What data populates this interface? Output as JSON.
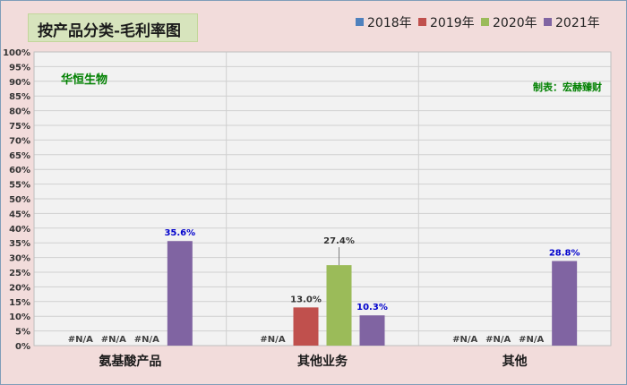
{
  "title": "按产品分类-毛利率图",
  "company_label": "华恒生物",
  "source_label": "制表：宏赫臻财",
  "colors": {
    "background": "#f2dcdb",
    "plot_bg": "#f2f2f2",
    "title_bg": "#d7e4bd",
    "company_text": "#008000",
    "highlight_label": "#0000cc"
  },
  "chart_data": {
    "type": "bar",
    "title": "按产品分类-毛利率图",
    "categories": [
      "氨基酸产品",
      "其他业务",
      "其他"
    ],
    "series": [
      {
        "name": "2018年",
        "color": "#4f81bd",
        "values": [
          null,
          null,
          null
        ],
        "labels": [
          "#N/A",
          "#N/A",
          "#N/A"
        ]
      },
      {
        "name": "2019年",
        "color": "#c0504d",
        "values": [
          null,
          13.0,
          null
        ],
        "labels": [
          "#N/A",
          "13.0%",
          "#N/A"
        ]
      },
      {
        "name": "2020年",
        "color": "#9bbb59",
        "values": [
          null,
          27.4,
          null
        ],
        "labels": [
          "#N/A",
          "27.4%",
          "#N/A"
        ]
      },
      {
        "name": "2021年",
        "color": "#8064a2",
        "values": [
          35.6,
          10.3,
          28.8
        ],
        "labels": [
          "35.6%",
          "10.3%",
          "28.8%"
        ]
      }
    ],
    "y_ticks": [
      "0%",
      "5%",
      "10%",
      "15%",
      "20%",
      "25%",
      "30%",
      "35%",
      "40%",
      "45%",
      "50%",
      "55%",
      "60%",
      "65%",
      "70%",
      "75%",
      "80%",
      "85%",
      "90%",
      "95%",
      "100%"
    ],
    "ylim": [
      0,
      100
    ],
    "grid": true,
    "legend_position": "top-right"
  }
}
